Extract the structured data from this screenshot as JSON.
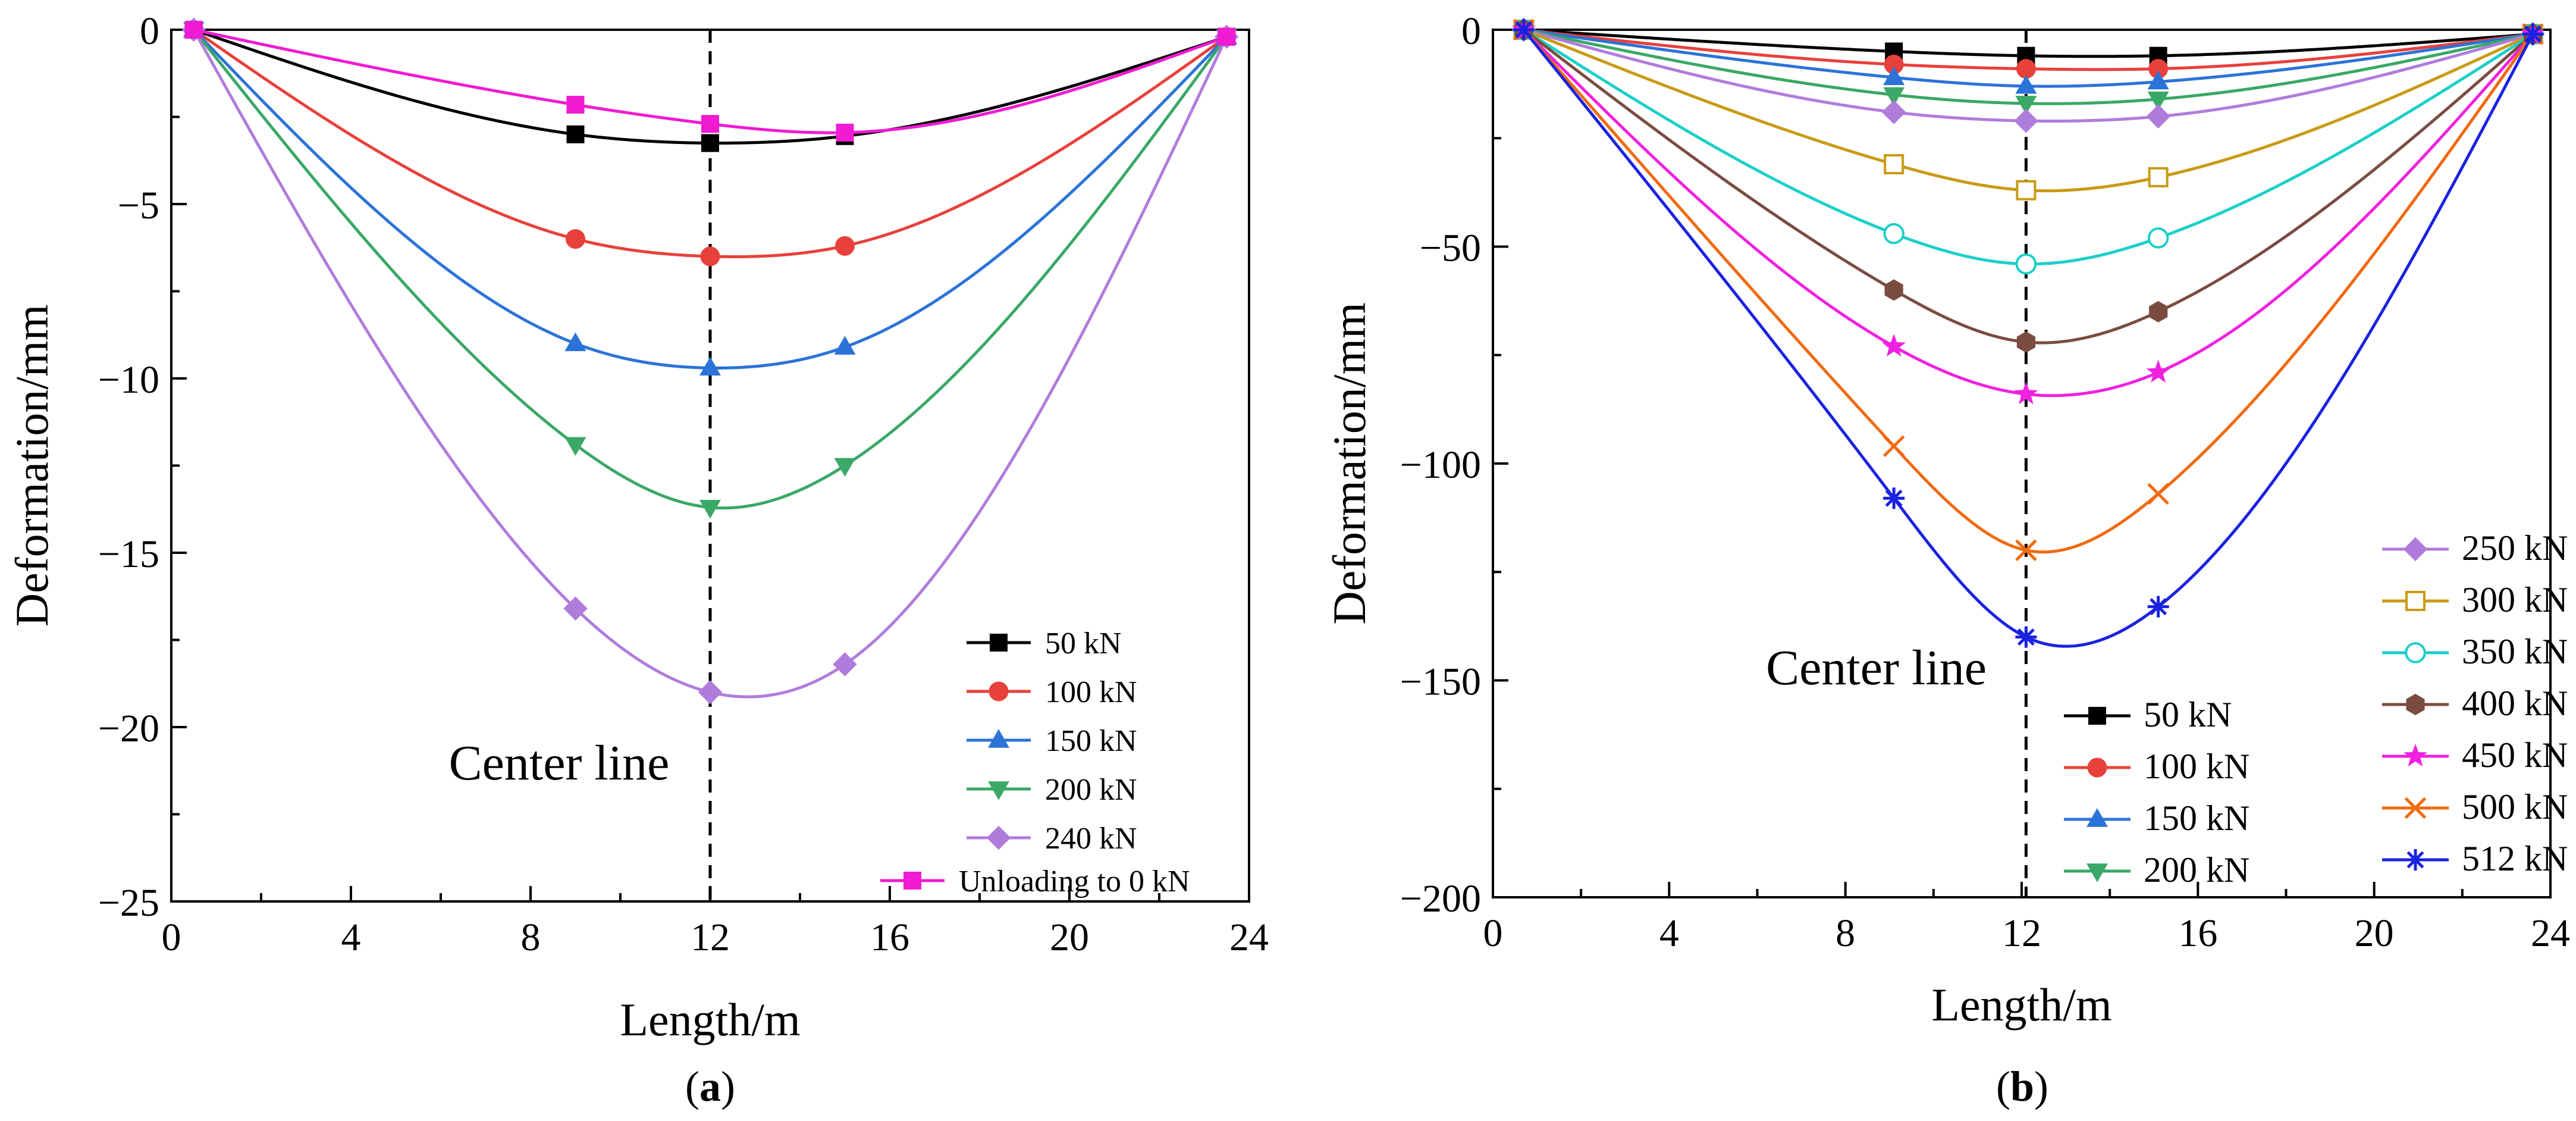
{
  "chart_data": [
    {
      "id": "a",
      "type": "line",
      "panel_label": "a",
      "xlabel": "Length/m",
      "ylabel": "Deformation/mm",
      "xlim": [
        0,
        24
      ],
      "ylim": [
        -25,
        0
      ],
      "xticks": [
        0,
        4,
        8,
        12,
        16,
        20,
        24
      ],
      "yticks": [
        0,
        -5,
        -10,
        -15,
        -20,
        -25
      ],
      "legend_position": "bottom-right",
      "center_line": {
        "x": 12,
        "label": "Center line"
      },
      "series": [
        {
          "name": "50 kN",
          "color": "#000000",
          "marker": "square",
          "x": [
            0.5,
            9,
            12,
            15,
            23.5
          ],
          "values": [
            0,
            -3.0,
            -3.25,
            -3.05,
            -0.2
          ]
        },
        {
          "name": "100 kN",
          "color": "#e8413b",
          "marker": "circle",
          "x": [
            0.5,
            9,
            12,
            15,
            23.5
          ],
          "values": [
            0,
            -6.0,
            -6.5,
            -6.2,
            -0.2
          ]
        },
        {
          "name": "150 kN",
          "color": "#2b73d8",
          "marker": "triangle-up",
          "x": [
            0.5,
            9,
            12,
            15,
            23.5
          ],
          "values": [
            0,
            -9.0,
            -9.7,
            -9.1,
            -0.2
          ]
        },
        {
          "name": "200 kN",
          "color": "#3aa866",
          "marker": "triangle-down",
          "x": [
            0.5,
            9,
            12,
            15,
            23.5
          ],
          "values": [
            0,
            -11.9,
            -13.7,
            -12.5,
            -0.2
          ]
        },
        {
          "name": "240 kN",
          "color": "#b07cdc",
          "marker": "diamond",
          "x": [
            0.5,
            9,
            12,
            15,
            23.5
          ],
          "values": [
            0,
            -16.6,
            -19.0,
            -18.2,
            -0.2
          ]
        },
        {
          "name": "Unloading to 0 kN",
          "color": "#f01bd2",
          "marker": "square",
          "x": [
            0.5,
            9,
            12,
            15,
            23.5
          ],
          "values": [
            0,
            -2.15,
            -2.7,
            -2.95,
            -0.2
          ]
        }
      ]
    },
    {
      "id": "b",
      "type": "line",
      "panel_label": "b",
      "xlabel": "Length/m",
      "ylabel": "Deformation/mm",
      "xlim": [
        0,
        24
      ],
      "ylim": [
        -200,
        0
      ],
      "xticks": [
        0,
        4,
        8,
        12,
        16,
        20,
        24
      ],
      "yticks": [
        0,
        -50,
        -100,
        -150,
        -200
      ],
      "legend_position": "bottom-right",
      "center_line": {
        "x": 12.1,
        "label": "Center line"
      },
      "series": [
        {
          "name": "50 kN",
          "color": "#000000",
          "marker": "square",
          "x": [
            0.7,
            9.1,
            12.1,
            15.1,
            23.6
          ],
          "values": [
            0,
            -5,
            -6,
            -6,
            -1
          ]
        },
        {
          "name": "100 kN",
          "color": "#e8413b",
          "marker": "circle",
          "x": [
            0.7,
            9.1,
            12.1,
            15.1,
            23.6
          ],
          "values": [
            0,
            -8,
            -9,
            -9,
            -1
          ]
        },
        {
          "name": "150 kN",
          "color": "#2b73d8",
          "marker": "triangle-up",
          "x": [
            0.7,
            9.1,
            12.1,
            15.1,
            23.6
          ],
          "values": [
            0,
            -11,
            -13,
            -12,
            -1
          ]
        },
        {
          "name": "200 kN",
          "color": "#3aa866",
          "marker": "triangle-down",
          "x": [
            0.7,
            9.1,
            12.1,
            15.1,
            23.6
          ],
          "values": [
            0,
            -15,
            -17,
            -16,
            -1
          ]
        },
        {
          "name": "250 kN",
          "color": "#b07cdc",
          "marker": "diamond",
          "x": [
            0.7,
            9.1,
            12.1,
            15.1,
            23.6
          ],
          "values": [
            0,
            -19,
            -21,
            -20,
            -1
          ]
        },
        {
          "name": "300 kN",
          "color": "#c99a14",
          "marker": "square-open",
          "x": [
            0.7,
            9.1,
            12.1,
            15.1,
            23.6
          ],
          "values": [
            0,
            -31,
            -37,
            -34,
            -1
          ]
        },
        {
          "name": "350 kN",
          "color": "#1ccfc9",
          "marker": "circle-open",
          "x": [
            0.7,
            9.1,
            12.1,
            15.1,
            23.6
          ],
          "values": [
            0,
            -47,
            -54,
            -48,
            -1
          ]
        },
        {
          "name": "400 kN",
          "color": "#7a4c40",
          "marker": "hexagon",
          "x": [
            0.7,
            9.1,
            12.1,
            15.1,
            23.6
          ],
          "values": [
            0,
            -60,
            -72,
            -65,
            -1
          ]
        },
        {
          "name": "450 kN",
          "color": "#f021e0",
          "marker": "star",
          "x": [
            0.7,
            9.1,
            12.1,
            15.1,
            23.6
          ],
          "values": [
            0,
            -73,
            -84,
            -79,
            -1
          ]
        },
        {
          "name": "500 kN",
          "color": "#f06a10",
          "marker": "x",
          "x": [
            0.7,
            9.1,
            12.1,
            15.1,
            23.6
          ],
          "values": [
            0,
            -96,
            -120,
            -107,
            -1
          ]
        },
        {
          "name": "512 kN",
          "color": "#1a22e0",
          "marker": "asterisk",
          "x": [
            0.7,
            9.1,
            12.1,
            15.1,
            23.6
          ],
          "values": [
            0,
            -108,
            -140,
            -133,
            -1
          ]
        }
      ]
    }
  ]
}
